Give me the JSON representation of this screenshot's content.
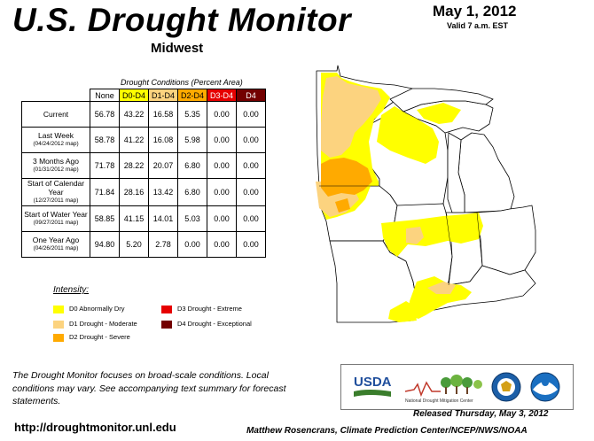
{
  "header": {
    "title": "U.S. Drought Monitor",
    "region": "Midwest",
    "date": "May 1, 2012",
    "valid": "Valid 7 a.m. EST"
  },
  "table": {
    "caption": "Drought Conditions (Percent Area)",
    "columns": [
      "None",
      "D0-D4",
      "D1-D4",
      "D2-D4",
      "D3-D4",
      "D4"
    ],
    "column_colors": [
      "#ffffff",
      "#ffff00",
      "#fcd37f",
      "#ffaa00",
      "#e60000",
      "#730000"
    ],
    "column_text_colors": [
      "#000000",
      "#000000",
      "#000000",
      "#000000",
      "#ffffff",
      "#ffffff"
    ],
    "rows": [
      {
        "label": "Current",
        "sub": "",
        "values": [
          "56.78",
          "43.22",
          "16.58",
          "5.35",
          "0.00",
          "0.00"
        ]
      },
      {
        "label": "Last Week",
        "sub": "(04/24/2012 map)",
        "values": [
          "58.78",
          "41.22",
          "16.08",
          "5.98",
          "0.00",
          "0.00"
        ]
      },
      {
        "label": "3 Months Ago",
        "sub": "(01/31/2012 map)",
        "values": [
          "71.78",
          "28.22",
          "20.07",
          "6.80",
          "0.00",
          "0.00"
        ]
      },
      {
        "label": "Start of Calendar Year",
        "sub": "(12/27/2011 map)",
        "values": [
          "71.84",
          "28.16",
          "13.42",
          "6.80",
          "0.00",
          "0.00"
        ]
      },
      {
        "label": "Start of Water Year",
        "sub": "(09/27/2011 map)",
        "values": [
          "58.85",
          "41.15",
          "14.01",
          "5.03",
          "0.00",
          "0.00"
        ]
      },
      {
        "label": "One Year Ago",
        "sub": "(04/26/2011 map)",
        "values": [
          "94.80",
          "5.20",
          "2.78",
          "0.00",
          "0.00",
          "0.00"
        ]
      }
    ]
  },
  "legend": {
    "title": "Intensity:",
    "items": [
      {
        "label": "D0 Abnormally Dry",
        "color": "#ffff00"
      },
      {
        "label": "D1 Drought - Moderate",
        "color": "#fcd37f"
      },
      {
        "label": "D2 Drought - Severe",
        "color": "#ffaa00"
      },
      {
        "label": "D3 Drought - Extreme",
        "color": "#e60000"
      },
      {
        "label": "D4 Drought - Exceptional",
        "color": "#730000"
      }
    ]
  },
  "footer": {
    "note": "The Drought Monitor focuses on broad-scale conditions. Local conditions may vary. See accompanying text summary for forecast statements.",
    "url": "http://droughtmonitor.unl.edu",
    "released": "Released Thursday, May 3, 2012",
    "author": "Matthew Rosencrans, Climate Prediction Center/NCEP/NWS/NOAA"
  },
  "logos": {
    "usda": "USDA",
    "ndmc": "National Drought Mitigation Center"
  }
}
